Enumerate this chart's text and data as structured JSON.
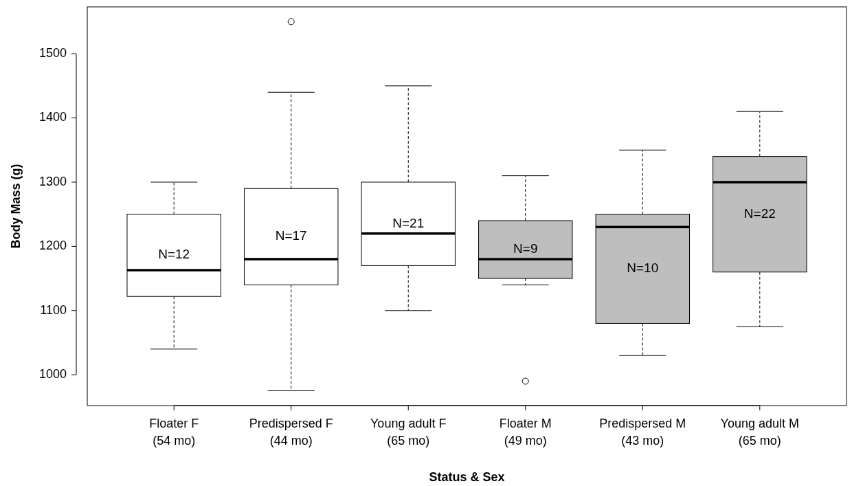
{
  "chart_data": {
    "type": "box",
    "xlabel": "Status & Sex",
    "ylabel": "Body Mass (g)",
    "categories": [
      "Floater F\n(54 mo)",
      "Predispersed F\n(44 mo)",
      "Young adult F\n(65 mo)",
      "Floater M\n(49 mo)",
      "Predispersed M\n(43 mo)",
      "Young adult M\n(65 mo)"
    ],
    "colors": [
      "#ffffff",
      "#ffffff",
      "#ffffff",
      "#bebebe",
      "#bebebe",
      "#bebebe"
    ],
    "boxes": [
      {
        "low": 1040,
        "q1": 1122,
        "median": 1163,
        "q3": 1250,
        "high": 1300
      },
      {
        "low": 975,
        "q1": 1140,
        "median": 1180,
        "q3": 1290,
        "high": 1440,
        "outliers": [
          1550
        ]
      },
      {
        "low": 1100,
        "q1": 1170,
        "median": 1220,
        "q3": 1300,
        "high": 1450
      },
      {
        "low": 1140,
        "q1": 1150,
        "median": 1180,
        "q3": 1240,
        "high": 1310,
        "outliers": [
          990
        ]
      },
      {
        "low": 1030,
        "q1": 1080,
        "median": 1230,
        "q3": 1250,
        "high": 1350
      },
      {
        "low": 1075,
        "q1": 1160,
        "median": 1300,
        "q3": 1340,
        "high": 1410
      }
    ],
    "ylim": [
      952,
      1573
    ],
    "yticks": [
      1000,
      1100,
      1200,
      1300,
      1400,
      1500
    ],
    "annotations": [
      "N=12",
      "N=17",
      "N=21",
      "N=9",
      "N=10",
      "N=22"
    ]
  }
}
